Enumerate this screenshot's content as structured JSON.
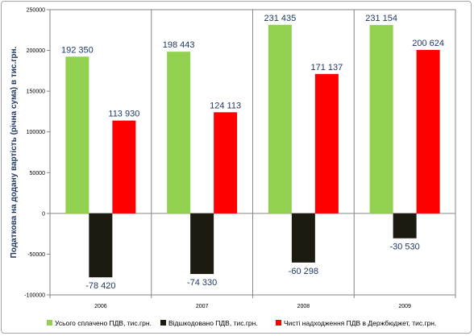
{
  "chart_data": {
    "type": "bar",
    "title": "",
    "ylabel": "Податкова на додану вартість (річна сума) в тис.грн.",
    "xlabel": "",
    "ylim": [
      -100000,
      250000
    ],
    "yticks": [
      -100000,
      -50000,
      0,
      50000,
      100000,
      150000,
      200000,
      250000
    ],
    "ytick_labels": [
      "-100000",
      "-50000",
      "0",
      "50000",
      "100000",
      "150000",
      "200000",
      "250000"
    ],
    "categories": [
      "2006",
      "2007",
      "2008",
      "2009"
    ],
    "series": [
      {
        "name": "Усього сплачено ПДВ, тис.грн.",
        "color": "#92d050",
        "values": [
          192350,
          198443,
          231435,
          231154
        ],
        "labels": [
          "192 350",
          "198 443",
          "231 435",
          "231 154"
        ]
      },
      {
        "name": "Відшкодовано ПДВ, тис.грн.",
        "color": "#1d1b10",
        "values": [
          -78420,
          -74330,
          -60298,
          -30530
        ],
        "labels": [
          "-78 420",
          "-74 330",
          "-60 298",
          "-30 530"
        ]
      },
      {
        "name": "Чисті надходження ПДВ в Держбюджет, тис.грн.",
        "color": "#ff0000",
        "values": [
          113930,
          124113,
          171137,
          200624
        ],
        "labels": [
          "113 930",
          "124 113",
          "171 137",
          "200 624"
        ]
      }
    ],
    "grid": "vertical-category-separators",
    "legend": "bottom"
  }
}
